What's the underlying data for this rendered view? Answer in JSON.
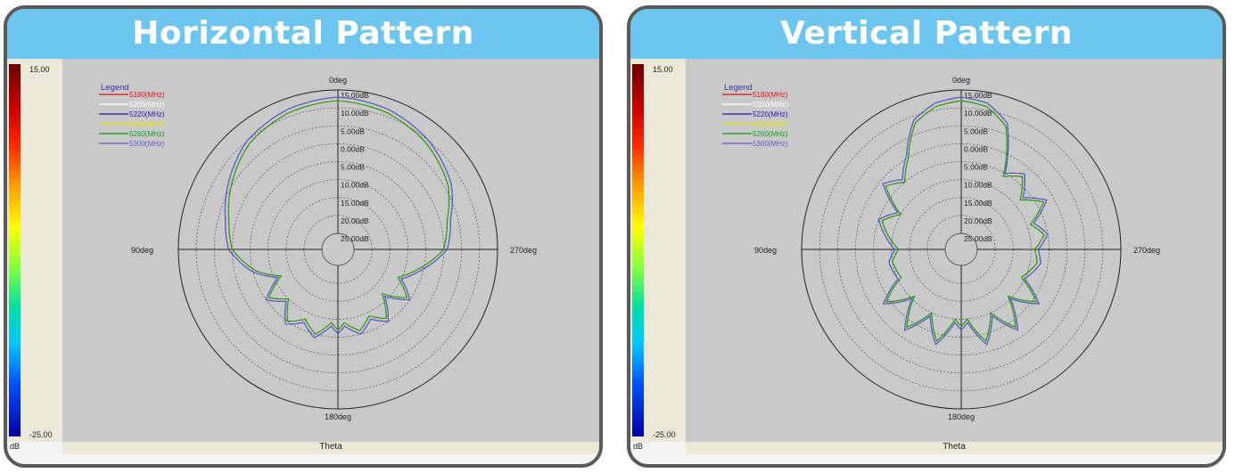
{
  "panels": [
    {
      "title": "Horizontal Pattern"
    },
    {
      "title": "Vertical Pattern"
    }
  ],
  "colorbar": {
    "max_label": "15.00",
    "min_label": "-25.00",
    "unit_label": "dB"
  },
  "axis": {
    "theta_label": "Theta",
    "angle_labels": {
      "top": "0deg",
      "left": "90deg",
      "right": "270deg",
      "bottom": "180deg"
    },
    "ring_labels": [
      "25.00dB",
      "20.00dB",
      "15.00dB",
      "10.00dB",
      "5.00dB",
      "0.00dB",
      "5.00dB",
      "10.00dB",
      "15.00dB"
    ]
  },
  "legend": {
    "title": "Legend"
  },
  "colors": {
    "title_bar": "#6cc6ef",
    "series": [
      "#dd1111",
      "#ffffff",
      "#1a1ab8",
      "#e8e800",
      "#10a010",
      "#6060c8"
    ]
  },
  "chart_data": [
    {
      "type": "polar",
      "title": "Horizontal Pattern",
      "xlabel": "Theta",
      "r_range_db": [
        -25,
        15
      ],
      "r_ticks_db": [
        -25,
        -20,
        -15,
        -10,
        -5,
        0,
        5,
        10,
        15
      ],
      "theta_labels": [
        "0deg",
        "90deg",
        "180deg",
        "270deg"
      ],
      "theta_direction": "counterclockwise",
      "legend_position": "top-left",
      "theta_deg": [
        0,
        20,
        40,
        60,
        75,
        90,
        105,
        115,
        125,
        135,
        145,
        155,
        165,
        175,
        180,
        185,
        195,
        205,
        215,
        225,
        235,
        245,
        255,
        270,
        285,
        300,
        320,
        340
      ],
      "series": [
        {
          "name": "5180(MHz)",
          "values_db": [
            12,
            11,
            9,
            5,
            2,
            0,
            -6,
            -12,
            -6,
            -10,
            -5,
            -8,
            -5,
            -9,
            -7,
            -9,
            -6,
            -9,
            -6,
            -12,
            -6,
            -11,
            -7,
            0,
            2,
            6,
            9,
            11
          ]
        },
        {
          "name": "5200(MHz)",
          "values_db": [
            12,
            11,
            9,
            5,
            2,
            0,
            -6,
            -12,
            -6,
            -10,
            -5,
            -8,
            -5,
            -9,
            -7,
            -9,
            -6,
            -9,
            -6,
            -12,
            -6,
            -11,
            -7,
            0,
            2,
            6,
            9,
            11
          ]
        },
        {
          "name": "5220(MHz)",
          "values_db": [
            13,
            12,
            10,
            6,
            3,
            1,
            -5,
            -11,
            -5,
            -9,
            -4,
            -7,
            -4,
            -8,
            -6,
            -8,
            -5,
            -8,
            -5,
            -11,
            -5,
            -10,
            -6,
            1,
            3,
            7,
            10,
            12
          ]
        },
        {
          "name": "5240(MHz)",
          "values_db": [
            12,
            11,
            9,
            5,
            2,
            0,
            -6,
            -12,
            -6,
            -10,
            -5,
            -8,
            -5,
            -9,
            -7,
            -9,
            -6,
            -9,
            -6,
            -12,
            -6,
            -11,
            -7,
            0,
            2,
            6,
            9,
            11
          ]
        },
        {
          "name": "5260(MHz)",
          "values_db": [
            12,
            11,
            9,
            5,
            2,
            0,
            -6,
            -12,
            -6,
            -10,
            -5,
            -8,
            -5,
            -9,
            -7,
            -9,
            -6,
            -9,
            -6,
            -12,
            -6,
            -11,
            -7,
            0,
            2,
            6,
            9,
            11
          ]
        },
        {
          "name": "5300(MHz)",
          "values_db": [
            13,
            12,
            10,
            6,
            3,
            1,
            -5,
            -11,
            -5,
            -9,
            -4,
            -7,
            -4,
            -8,
            -6,
            -8,
            -5,
            -8,
            -5,
            -11,
            -5,
            -10,
            -6,
            1,
            3,
            7,
            10,
            12
          ]
        }
      ]
    },
    {
      "type": "polar",
      "title": "Vertical Pattern",
      "xlabel": "Theta",
      "r_range_db": [
        -25,
        15
      ],
      "r_ticks_db": [
        -25,
        -20,
        -15,
        -10,
        -5,
        0,
        5,
        10,
        15
      ],
      "theta_labels": [
        "0deg",
        "90deg",
        "180deg",
        "270deg"
      ],
      "theta_direction": "counterclockwise",
      "legend_position": "top-left",
      "theta_deg": [
        0,
        10,
        20,
        30,
        40,
        50,
        60,
        70,
        80,
        90,
        100,
        115,
        125,
        135,
        145,
        155,
        165,
        175,
        180,
        185,
        195,
        205,
        215,
        225,
        235,
        245,
        260,
        270,
        280,
        290,
        300,
        310,
        320,
        330,
        340,
        350
      ],
      "series": [
        {
          "name": "5180(MHz)",
          "values_db": [
            12,
            11,
            8,
            0,
            -5,
            -2,
            -10,
            -6,
            -9,
            -12,
            -10,
            -11,
            -4,
            -11,
            -3,
            -10,
            -3,
            -10,
            -8,
            -10,
            -3,
            -10,
            -3,
            -11,
            -4,
            -11,
            -8,
            -9,
            -6,
            -9,
            -3,
            -8,
            -3,
            -6,
            7,
            11
          ]
        },
        {
          "name": "5200(MHz)",
          "values_db": [
            12,
            11,
            8,
            0,
            -5,
            -2,
            -10,
            -6,
            -9,
            -12,
            -10,
            -11,
            -4,
            -11,
            -3,
            -10,
            -3,
            -10,
            -8,
            -10,
            -3,
            -10,
            -3,
            -11,
            -4,
            -11,
            -8,
            -9,
            -6,
            -9,
            -3,
            -8,
            -3,
            -6,
            7,
            11
          ]
        },
        {
          "name": "5220(MHz)",
          "values_db": [
            13,
            12,
            9,
            1,
            -4,
            -1,
            -9,
            -5,
            -8,
            -11,
            -9,
            -10,
            -3,
            -10,
            -2,
            -9,
            -2,
            -9,
            -7,
            -9,
            -2,
            -9,
            -2,
            -10,
            -3,
            -10,
            -7,
            -8,
            -5,
            -8,
            -2,
            -7,
            -2,
            -5,
            8,
            12
          ]
        },
        {
          "name": "5240(MHz)",
          "values_db": [
            12,
            11,
            8,
            0,
            -5,
            -2,
            -10,
            -6,
            -9,
            -12,
            -10,
            -11,
            -4,
            -11,
            -3,
            -10,
            -3,
            -10,
            -8,
            -10,
            -3,
            -10,
            -3,
            -11,
            -4,
            -11,
            -8,
            -9,
            -6,
            -9,
            -3,
            -8,
            -3,
            -6,
            7,
            11
          ]
        },
        {
          "name": "5260(MHz)",
          "values_db": [
            12,
            11,
            8,
            0,
            -5,
            -2,
            -10,
            -6,
            -9,
            -12,
            -10,
            -11,
            -4,
            -11,
            -3,
            -10,
            -3,
            -10,
            -8,
            -10,
            -3,
            -10,
            -3,
            -11,
            -4,
            -11,
            -8,
            -9,
            -6,
            -9,
            -3,
            -8,
            -3,
            -6,
            7,
            11
          ]
        },
        {
          "name": "5300(MHz)",
          "values_db": [
            13,
            12,
            9,
            1,
            -4,
            -1,
            -9,
            -5,
            -8,
            -11,
            -9,
            -10,
            -3,
            -10,
            -2,
            -9,
            -2,
            -9,
            -7,
            -9,
            -2,
            -9,
            -2,
            -10,
            -3,
            -10,
            -7,
            -8,
            -5,
            -8,
            -2,
            -7,
            -2,
            -5,
            8,
            12
          ]
        }
      ]
    }
  ]
}
